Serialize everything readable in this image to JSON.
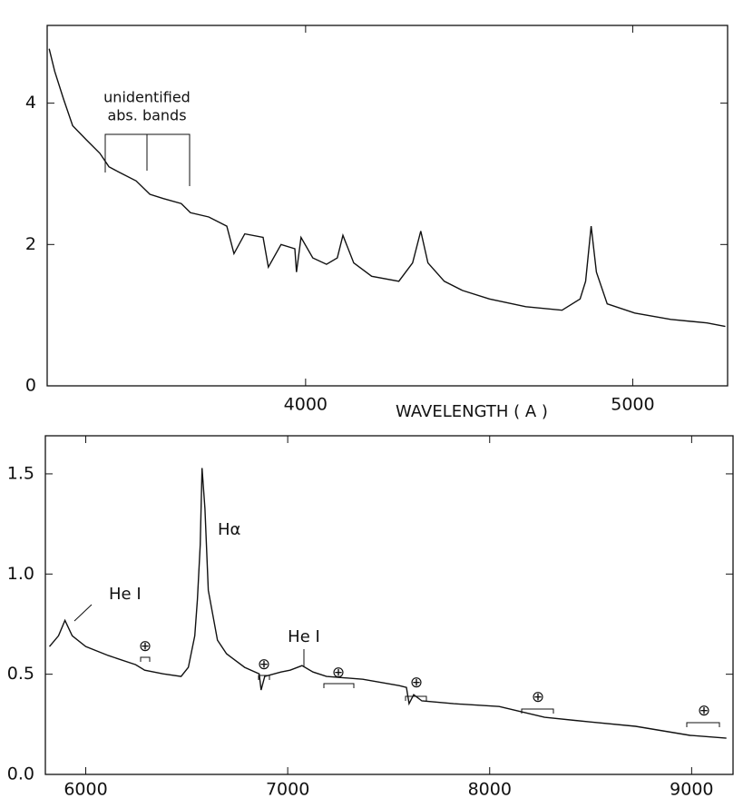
{
  "chart_data": [
    {
      "type": "line",
      "color": "#111111",
      "xlim": [
        3210,
        5290
      ],
      "xticks": [
        4000,
        5000
      ],
      "ylim": [
        0,
        5.1
      ],
      "yticks": [
        0,
        2,
        4
      ],
      "x_label": "WAVELENGTH ( A )",
      "annotations": [
        "unidentified",
        "abs. bands"
      ],
      "x": [
        3216,
        3233,
        3260,
        3288,
        3330,
        3371,
        3399,
        3427,
        3482,
        3524,
        3565,
        3620,
        3648,
        3704,
        3759,
        3781,
        3814,
        3870,
        3886,
        3925,
        3967,
        3972,
        3986,
        4022,
        4064,
        4097,
        4114,
        4147,
        4202,
        4285,
        4327,
        4352,
        4374,
        4424,
        4479,
        4562,
        4673,
        4784,
        4839,
        4856,
        4873,
        4889,
        4922,
        5006,
        5116,
        5227,
        5283
      ],
      "values": [
        4.77,
        4.45,
        4.06,
        3.68,
        3.48,
        3.29,
        3.1,
        3.03,
        2.9,
        2.71,
        2.65,
        2.58,
        2.45,
        2.39,
        2.26,
        1.87,
        2.15,
        2.1,
        1.68,
        2.0,
        1.94,
        1.61,
        2.1,
        1.81,
        1.72,
        1.81,
        2.13,
        1.74,
        1.55,
        1.48,
        1.74,
        2.19,
        1.74,
        1.48,
        1.35,
        1.23,
        1.12,
        1.07,
        1.23,
        1.48,
        2.26,
        1.61,
        1.16,
        1.03,
        0.94,
        0.89,
        0.84
      ]
    },
    {
      "type": "line",
      "color": "#111111",
      "xlim": [
        5800,
        9205
      ],
      "xticks": [
        6000,
        7000,
        8000,
        9000
      ],
      "ylim": [
        0,
        1.69
      ],
      "yticks": [
        {
          "value": 0,
          "label": "0.0"
        },
        0.5,
        {
          "value": 1,
          "label": "1.0"
        },
        1.5
      ],
      "annotations": [
        "He I",
        "Hα",
        "He I",
        "⊕",
        "⊕",
        "⊕",
        "⊕",
        "⊕",
        "⊕"
      ],
      "x": [
        5820,
        5865,
        5897,
        5933,
        6000,
        6112,
        6247,
        6292,
        6382,
        6472,
        6508,
        6540,
        6553,
        6567,
        6576,
        6590,
        6607,
        6652,
        6697,
        6787,
        6859,
        6868,
        6886,
        6967,
        7012,
        7071,
        7125,
        7192,
        7372,
        7552,
        7588,
        7601,
        7624,
        7664,
        7822,
        8047,
        8272,
        8497,
        8722,
        8992,
        9172
      ],
      "values": [
        0.638,
        0.692,
        0.769,
        0.692,
        0.638,
        0.593,
        0.548,
        0.52,
        0.502,
        0.489,
        0.534,
        0.692,
        0.873,
        1.145,
        1.529,
        1.326,
        0.919,
        0.67,
        0.602,
        0.534,
        0.502,
        0.421,
        0.489,
        0.511,
        0.52,
        0.543,
        0.511,
        0.489,
        0.475,
        0.443,
        0.434,
        0.353,
        0.398,
        0.367,
        0.353,
        0.339,
        0.285,
        0.262,
        0.24,
        0.195,
        0.181
      ]
    }
  ]
}
